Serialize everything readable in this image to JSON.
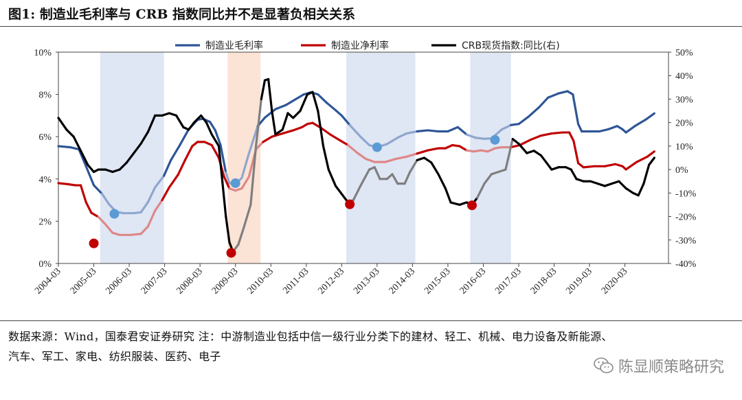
{
  "title": "图1:  制造业毛利率与 CRB 指数同比并不是显著负相关关系",
  "footer": {
    "line1": "数据来源：Wind，国泰君安证券研究    注：中游制造业包括中信一级行业分类下的建材、轻工、机械、电力设备及新能源、",
    "line2": "汽车、军工、家电、纺织服装、医药、电子"
  },
  "watermark": {
    "text": "陈显顺策略研究",
    "icon": "wechat-icon"
  },
  "chart_data": {
    "type": "line",
    "x_ticks": [
      "2004-03",
      "2005-03",
      "2006-03",
      "2007-03",
      "2008-03",
      "2009-03",
      "2010-03",
      "2011-03",
      "2012-03",
      "2013-03",
      "2014-03",
      "2015-03",
      "2016-03",
      "2017-03",
      "2018-03",
      "2019-03",
      "2020-03"
    ],
    "x_range": [
      2004.17,
      2021.4
    ],
    "y_left": {
      "ticks": [
        "0%",
        "2%",
        "4%",
        "6%",
        "8%",
        "10%"
      ],
      "range": [
        0,
        10
      ]
    },
    "y_right": {
      "ticks": [
        "-40%",
        "-30%",
        "-20%",
        "-10%",
        "0%",
        "10%",
        "20%",
        "30%",
        "40%",
        "50%"
      ],
      "range": [
        -40,
        50
      ]
    },
    "legend_position": "top",
    "shaded_periods": [
      {
        "from": 2005.35,
        "to": 2007.15,
        "color": "#dfe6f4"
      },
      {
        "from": 2008.95,
        "to": 2009.88,
        "color": "#fbe3d6"
      },
      {
        "from": 2012.3,
        "to": 2014.25,
        "color": "#dfe6f4"
      },
      {
        "from": 2015.8,
        "to": 2016.95,
        "color": "#dfe6f4"
      }
    ],
    "series": [
      {
        "name": "制造业毛利率",
        "axis": "left",
        "color": "#2e5597",
        "faded_color": "#8fa6ce",
        "points": [
          [
            2004.17,
            5.55
          ],
          [
            2004.5,
            5.5
          ],
          [
            2004.75,
            5.4
          ],
          [
            2004.95,
            4.6
          ],
          [
            2005.17,
            3.7
          ],
          [
            2005.4,
            3.3
          ],
          [
            2005.6,
            2.8
          ],
          [
            2005.8,
            2.45
          ],
          [
            2006.0,
            2.38
          ],
          [
            2006.3,
            2.38
          ],
          [
            2006.5,
            2.42
          ],
          [
            2006.7,
            2.9
          ],
          [
            2006.9,
            3.6
          ],
          [
            2007.15,
            4.15
          ],
          [
            2007.35,
            4.9
          ],
          [
            2007.6,
            5.6
          ],
          [
            2007.85,
            6.35
          ],
          [
            2008.1,
            6.8
          ],
          [
            2008.25,
            6.85
          ],
          [
            2008.45,
            6.7
          ],
          [
            2008.6,
            6.3
          ],
          [
            2008.75,
            5.6
          ],
          [
            2008.9,
            4.3
          ],
          [
            2009.0,
            3.8
          ],
          [
            2009.17,
            3.75
          ],
          [
            2009.35,
            4.05
          ],
          [
            2009.55,
            5.2
          ],
          [
            2009.8,
            6.5
          ],
          [
            2010.0,
            6.9
          ],
          [
            2010.3,
            7.3
          ],
          [
            2010.6,
            7.5
          ],
          [
            2010.85,
            7.75
          ],
          [
            2011.1,
            8.0
          ],
          [
            2011.3,
            8.1
          ],
          [
            2011.5,
            8.0
          ],
          [
            2011.75,
            7.6
          ],
          [
            2012.0,
            7.25
          ],
          [
            2012.17,
            7.0
          ],
          [
            2012.4,
            6.55
          ],
          [
            2012.7,
            6.0
          ],
          [
            2012.95,
            5.6
          ],
          [
            2013.17,
            5.5
          ],
          [
            2013.45,
            5.65
          ],
          [
            2013.75,
            5.95
          ],
          [
            2014.0,
            6.15
          ],
          [
            2014.3,
            6.25
          ],
          [
            2014.6,
            6.3
          ],
          [
            2014.9,
            6.25
          ],
          [
            2015.17,
            6.25
          ],
          [
            2015.45,
            6.45
          ],
          [
            2015.7,
            6.1
          ],
          [
            2015.95,
            5.95
          ],
          [
            2016.2,
            5.9
          ],
          [
            2016.4,
            5.92
          ],
          [
            2016.7,
            6.35
          ],
          [
            2016.95,
            6.55
          ],
          [
            2017.17,
            6.6
          ],
          [
            2017.45,
            6.95
          ],
          [
            2017.75,
            7.4
          ],
          [
            2018.0,
            7.85
          ],
          [
            2018.3,
            8.05
          ],
          [
            2018.55,
            8.15
          ],
          [
            2018.7,
            8.0
          ],
          [
            2018.85,
            6.6
          ],
          [
            2018.95,
            6.25
          ],
          [
            2019.17,
            6.25
          ],
          [
            2019.45,
            6.25
          ],
          [
            2019.7,
            6.35
          ],
          [
            2019.95,
            6.5
          ],
          [
            2020.1,
            6.35
          ],
          [
            2020.2,
            6.2
          ],
          [
            2020.45,
            6.5
          ],
          [
            2020.75,
            6.8
          ],
          [
            2021.0,
            7.1
          ]
        ],
        "faded_ranges": [
          [
            2005.35,
            2007.15
          ],
          [
            2008.95,
            2009.88
          ],
          [
            2012.3,
            2014.25
          ],
          [
            2015.8,
            2016.95
          ]
        ],
        "markers": [
          [
            2005.75,
            2.35
          ],
          [
            2009.17,
            3.8
          ],
          [
            2013.17,
            5.5
          ],
          [
            2016.5,
            5.85
          ]
        ]
      },
      {
        "name": "制造业净利率",
        "axis": "left",
        "color": "#c00000",
        "faded_color": "#de8888",
        "points": [
          [
            2004.17,
            3.8
          ],
          [
            2004.45,
            3.75
          ],
          [
            2004.65,
            3.7
          ],
          [
            2004.8,
            3.7
          ],
          [
            2004.95,
            2.9
          ],
          [
            2005.1,
            2.4
          ],
          [
            2005.3,
            2.2
          ],
          [
            2005.5,
            1.85
          ],
          [
            2005.7,
            1.45
          ],
          [
            2005.9,
            1.35
          ],
          [
            2006.2,
            1.35
          ],
          [
            2006.5,
            1.4
          ],
          [
            2006.7,
            1.75
          ],
          [
            2006.9,
            2.5
          ],
          [
            2007.1,
            3.0
          ],
          [
            2007.3,
            3.6
          ],
          [
            2007.55,
            4.2
          ],
          [
            2007.75,
            4.9
          ],
          [
            2007.95,
            5.55
          ],
          [
            2008.1,
            5.75
          ],
          [
            2008.3,
            5.75
          ],
          [
            2008.5,
            5.6
          ],
          [
            2008.7,
            5.0
          ],
          [
            2008.85,
            4.1
          ],
          [
            2009.0,
            3.55
          ],
          [
            2009.17,
            3.45
          ],
          [
            2009.35,
            3.55
          ],
          [
            2009.55,
            4.1
          ],
          [
            2009.75,
            5.4
          ],
          [
            2009.95,
            5.75
          ],
          [
            2010.2,
            6.0
          ],
          [
            2010.5,
            6.15
          ],
          [
            2010.8,
            6.3
          ],
          [
            2011.05,
            6.45
          ],
          [
            2011.2,
            6.6
          ],
          [
            2011.35,
            6.65
          ],
          [
            2011.6,
            6.4
          ],
          [
            2011.85,
            6.1
          ],
          [
            2012.1,
            5.85
          ],
          [
            2012.35,
            5.6
          ],
          [
            2012.6,
            5.25
          ],
          [
            2012.85,
            4.95
          ],
          [
            2013.1,
            4.8
          ],
          [
            2013.4,
            4.8
          ],
          [
            2013.7,
            4.95
          ],
          [
            2014.0,
            5.05
          ],
          [
            2014.3,
            5.2
          ],
          [
            2014.6,
            5.35
          ],
          [
            2014.9,
            5.45
          ],
          [
            2015.1,
            5.45
          ],
          [
            2015.3,
            5.6
          ],
          [
            2015.5,
            5.55
          ],
          [
            2015.7,
            5.35
          ],
          [
            2015.9,
            5.3
          ],
          [
            2016.1,
            5.35
          ],
          [
            2016.3,
            5.3
          ],
          [
            2016.5,
            5.45
          ],
          [
            2016.7,
            5.5
          ],
          [
            2016.95,
            5.5
          ],
          [
            2017.2,
            5.6
          ],
          [
            2017.5,
            5.85
          ],
          [
            2017.8,
            6.05
          ],
          [
            2018.1,
            6.15
          ],
          [
            2018.4,
            6.2
          ],
          [
            2018.6,
            6.2
          ],
          [
            2018.72,
            5.8
          ],
          [
            2018.85,
            4.75
          ],
          [
            2019.0,
            4.55
          ],
          [
            2019.3,
            4.6
          ],
          [
            2019.6,
            4.6
          ],
          [
            2019.9,
            4.7
          ],
          [
            2020.1,
            4.6
          ],
          [
            2020.2,
            4.45
          ],
          [
            2020.5,
            4.8
          ],
          [
            2020.8,
            5.05
          ],
          [
            2021.0,
            5.3
          ]
        ],
        "faded_ranges": [
          [
            2005.35,
            2007.15
          ],
          [
            2008.95,
            2009.88
          ],
          [
            2012.3,
            2014.25
          ],
          [
            2015.8,
            2016.95
          ]
        ],
        "markers": [
          [
            2005.17,
            0.95
          ],
          [
            2009.05,
            0.5
          ],
          [
            2012.4,
            2.8
          ],
          [
            2015.85,
            2.75
          ]
        ]
      },
      {
        "name": "CRB现货指数:同比(右)",
        "axis": "right",
        "color": "#000000",
        "faded_color": "#7f7f7f",
        "points": [
          [
            2004.17,
            22
          ],
          [
            2004.4,
            17
          ],
          [
            2004.6,
            14
          ],
          [
            2004.8,
            8
          ],
          [
            2005.0,
            2
          ],
          [
            2005.17,
            -1
          ],
          [
            2005.3,
            0
          ],
          [
            2005.5,
            0
          ],
          [
            2005.7,
            -1
          ],
          [
            2005.9,
            0
          ],
          [
            2006.1,
            3
          ],
          [
            2006.3,
            7
          ],
          [
            2006.5,
            11
          ],
          [
            2006.7,
            16
          ],
          [
            2006.9,
            23
          ],
          [
            2007.1,
            23
          ],
          [
            2007.3,
            24
          ],
          [
            2007.5,
            23
          ],
          [
            2007.7,
            18
          ],
          [
            2007.85,
            17
          ],
          [
            2008.0,
            20
          ],
          [
            2008.2,
            23
          ],
          [
            2008.35,
            20
          ],
          [
            2008.5,
            15
          ],
          [
            2008.7,
            10
          ],
          [
            2008.8,
            -5
          ],
          [
            2008.9,
            -20
          ],
          [
            2009.0,
            -31
          ],
          [
            2009.1,
            -35
          ],
          [
            2009.25,
            -32
          ],
          [
            2009.4,
            -25
          ],
          [
            2009.6,
            -15
          ],
          [
            2009.75,
            10
          ],
          [
            2009.9,
            30
          ],
          [
            2010.0,
            38
          ],
          [
            2010.1,
            38.5
          ],
          [
            2010.2,
            25
          ],
          [
            2010.3,
            15
          ],
          [
            2010.5,
            17
          ],
          [
            2010.65,
            24
          ],
          [
            2010.8,
            22
          ],
          [
            2011.0,
            25
          ],
          [
            2011.2,
            32
          ],
          [
            2011.35,
            33
          ],
          [
            2011.5,
            25
          ],
          [
            2011.65,
            10
          ],
          [
            2011.8,
            0
          ],
          [
            2012.0,
            -7
          ],
          [
            2012.2,
            -11
          ],
          [
            2012.35,
            -14
          ],
          [
            2012.5,
            -13
          ],
          [
            2012.7,
            -7
          ],
          [
            2012.95,
            0
          ],
          [
            2013.1,
            1
          ],
          [
            2013.25,
            -4
          ],
          [
            2013.45,
            -4
          ],
          [
            2013.6,
            -2
          ],
          [
            2013.75,
            -6
          ],
          [
            2013.95,
            -6
          ],
          [
            2014.1,
            -1
          ],
          [
            2014.3,
            4
          ],
          [
            2014.5,
            5
          ],
          [
            2014.7,
            3
          ],
          [
            2014.9,
            -2
          ],
          [
            2015.1,
            -8
          ],
          [
            2015.25,
            -14
          ],
          [
            2015.5,
            -15
          ],
          [
            2015.7,
            -14
          ],
          [
            2015.85,
            -15
          ],
          [
            2016.0,
            -12
          ],
          [
            2016.2,
            -6
          ],
          [
            2016.4,
            -2
          ],
          [
            2016.6,
            -1
          ],
          [
            2016.8,
            0
          ],
          [
            2017.0,
            13
          ],
          [
            2017.17,
            11
          ],
          [
            2017.4,
            7
          ],
          [
            2017.6,
            8
          ],
          [
            2017.8,
            6
          ],
          [
            2017.95,
            3
          ],
          [
            2018.1,
            0
          ],
          [
            2018.3,
            1
          ],
          [
            2018.5,
            1
          ],
          [
            2018.65,
            0
          ],
          [
            2018.8,
            -4
          ],
          [
            2019.0,
            -5
          ],
          [
            2019.2,
            -5
          ],
          [
            2019.4,
            -6
          ],
          [
            2019.6,
            -7
          ],
          [
            2019.8,
            -6
          ],
          [
            2020.0,
            -5
          ],
          [
            2020.2,
            -8
          ],
          [
            2020.4,
            -10
          ],
          [
            2020.55,
            -11
          ],
          [
            2020.7,
            -6
          ],
          [
            2020.85,
            2
          ],
          [
            2021.0,
            5
          ]
        ],
        "faded_ranges": [
          [
            2009.1,
            2009.88
          ],
          [
            2012.4,
            2014.25
          ],
          [
            2016.0,
            2016.95
          ]
        ],
        "markers": []
      }
    ]
  }
}
